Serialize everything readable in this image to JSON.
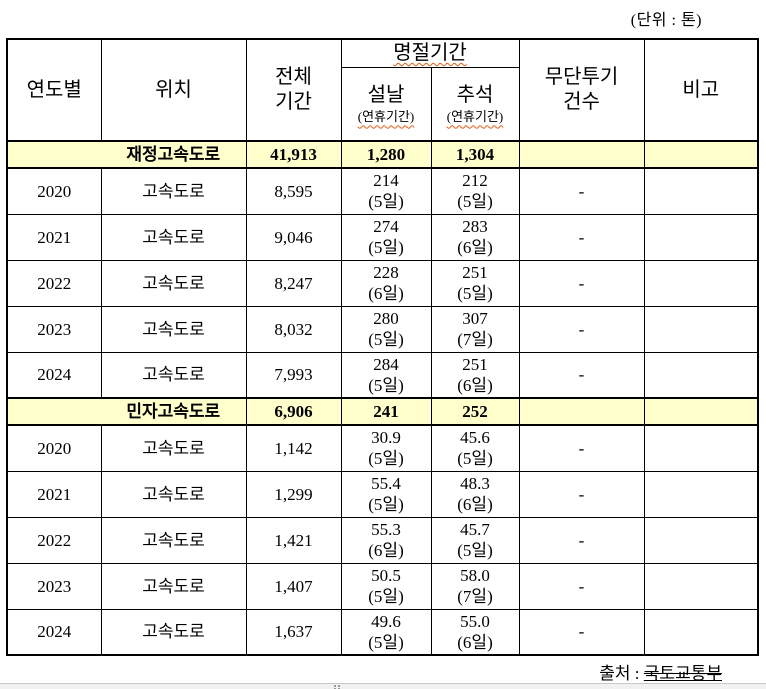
{
  "meta": {
    "unit_label": "(단위 : 톤)",
    "source_label": "출처 : ",
    "source_value": "국토교통부"
  },
  "colors": {
    "highlight_row": "#FFFFCC",
    "squiggle": "#E25B0E",
    "border": "#000000"
  },
  "table": {
    "header": {
      "col_year": "연도별",
      "col_location": "위치",
      "col_total_line1": "전체",
      "col_total_line2": "기간",
      "col_holiday_group": "명절기간",
      "col_seollal": "설날",
      "col_chuseok": "추석",
      "col_holiday_sub": "(연휴기간)",
      "col_dumping_line1": "무단투기",
      "col_dumping_line2": "건수",
      "col_remarks": "비고"
    },
    "rows": [
      {
        "type": "summary",
        "year": "",
        "location": "재정고속도로",
        "total": "41,913",
        "seollal": "1,280",
        "seollal_days": "",
        "chuseok": "1,304",
        "chuseok_days": "",
        "dumping": "",
        "remarks": ""
      },
      {
        "type": "data",
        "year": "2020",
        "location": "고속도로",
        "total": "8,595",
        "seollal": "214",
        "seollal_days": "(5일)",
        "chuseok": "212",
        "chuseok_days": "(5일)",
        "dumping": "-",
        "remarks": ""
      },
      {
        "type": "data",
        "year": "2021",
        "location": "고속도로",
        "total": "9,046",
        "seollal": "274",
        "seollal_days": "(5일)",
        "chuseok": "283",
        "chuseok_days": "(6일)",
        "dumping": "-",
        "remarks": ""
      },
      {
        "type": "data",
        "year": "2022",
        "location": "고속도로",
        "total": "8,247",
        "seollal": "228",
        "seollal_days": "(6일)",
        "chuseok": "251",
        "chuseok_days": "(5일)",
        "dumping": "-",
        "remarks": ""
      },
      {
        "type": "data",
        "year": "2023",
        "location": "고속도로",
        "total": "8,032",
        "seollal": "280",
        "seollal_days": "(5일)",
        "chuseok": "307",
        "chuseok_days": "(7일)",
        "dumping": "-",
        "remarks": ""
      },
      {
        "type": "data",
        "year": "2024",
        "location": "고속도로",
        "total": "7,993",
        "seollal": "284",
        "seollal_days": "(5일)",
        "chuseok": "251",
        "chuseok_days": "(6일)",
        "dumping": "-",
        "remarks": ""
      },
      {
        "type": "summary",
        "year": "",
        "location": "민자고속도로",
        "total": "6,906",
        "seollal": "241",
        "seollal_days": "",
        "chuseok": "252",
        "chuseok_days": "",
        "dumping": "",
        "remarks": ""
      },
      {
        "type": "data",
        "year": "2020",
        "location": "고속도로",
        "total": "1,142",
        "seollal": "30.9",
        "seollal_days": "(5일)",
        "chuseok": "45.6",
        "chuseok_days": "(5일)",
        "dumping": "-",
        "remarks": ""
      },
      {
        "type": "data",
        "year": "2021",
        "location": "고속도로",
        "total": "1,299",
        "seollal": "55.4",
        "seollal_days": "(5일)",
        "chuseok": "48.3",
        "chuseok_days": "(6일)",
        "dumping": "-",
        "remarks": ""
      },
      {
        "type": "data",
        "year": "2022",
        "location": "고속도로",
        "total": "1,421",
        "seollal": "55.3",
        "seollal_days": "(6일)",
        "chuseok": "45.7",
        "chuseok_days": "(5일)",
        "dumping": "-",
        "remarks": ""
      },
      {
        "type": "data",
        "year": "2023",
        "location": "고속도로",
        "total": "1,407",
        "seollal": "50.5",
        "seollal_days": "(5일)",
        "chuseok": "58.0",
        "chuseok_days": "(7일)",
        "dumping": "-",
        "remarks": ""
      },
      {
        "type": "data",
        "year": "2024",
        "location": "고속도로",
        "total": "1,637",
        "seollal": "49.6",
        "seollal_days": "(5일)",
        "chuseok": "55.0",
        "chuseok_days": "(6일)",
        "dumping": "-",
        "remarks": ""
      }
    ]
  }
}
